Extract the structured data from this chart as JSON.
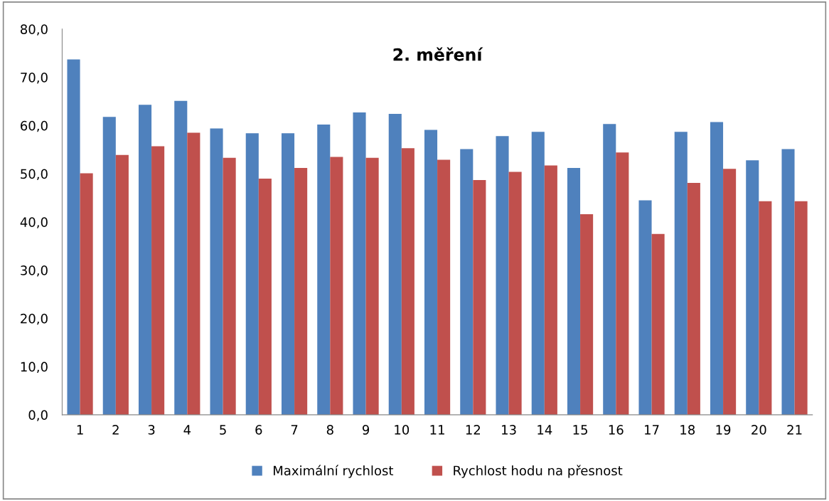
{
  "chart_data": {
    "type": "bar",
    "title": "2. měření",
    "categories": [
      "1",
      "2",
      "3",
      "4",
      "5",
      "6",
      "7",
      "8",
      "9",
      "10",
      "11",
      "12",
      "13",
      "14",
      "15",
      "16",
      "17",
      "18",
      "19",
      "20",
      "21"
    ],
    "series": [
      {
        "name": "Maximální rychlost",
        "color": "#4f81bd",
        "values": [
          73.7,
          61.8,
          64.3,
          65.1,
          59.4,
          58.4,
          58.4,
          60.2,
          62.7,
          62.4,
          59.1,
          55.1,
          57.8,
          58.7,
          51.2,
          60.3,
          44.5,
          58.7,
          60.7,
          52.8,
          55.1
        ]
      },
      {
        "name": "Rychlost hodu na přesnost",
        "color": "#c0504d",
        "values": [
          50.1,
          53.9,
          55.7,
          58.5,
          53.3,
          49.0,
          51.2,
          53.5,
          53.3,
          55.3,
          52.9,
          48.7,
          50.4,
          51.7,
          41.6,
          54.4,
          37.5,
          48.1,
          51.0,
          44.3,
          44.3
        ]
      }
    ],
    "ylim": [
      0,
      80
    ],
    "yticks": [
      {
        "value": 0,
        "label": "0,0"
      },
      {
        "value": 10,
        "label": "10,0"
      },
      {
        "value": 20,
        "label": "20,0"
      },
      {
        "value": 30,
        "label": "30,0"
      },
      {
        "value": 40,
        "label": "40,0"
      },
      {
        "value": 50,
        "label": "50,0"
      },
      {
        "value": 60,
        "label": "60,0"
      },
      {
        "value": 70,
        "label": "70,0"
      },
      {
        "value": 80,
        "label": "80,0"
      }
    ],
    "legend": "bottom"
  }
}
